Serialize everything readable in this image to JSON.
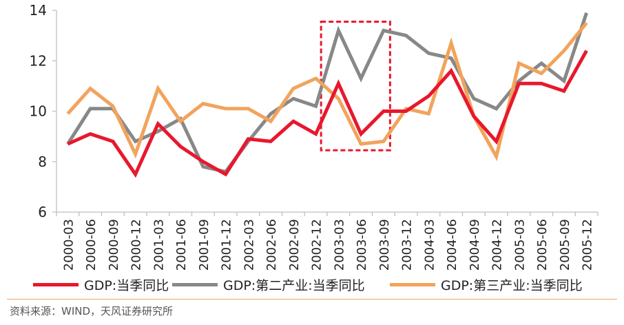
{
  "chart_data": {
    "type": "line",
    "title": "",
    "xlabel": "",
    "ylabel": "",
    "ylim": [
      6,
      14
    ],
    "yticks": [
      6,
      8,
      10,
      12,
      14
    ],
    "grid": false,
    "legend_position": "bottom",
    "categories": [
      "2000-03",
      "2000-06",
      "2000-09",
      "2000-12",
      "2001-03",
      "2001-06",
      "2001-09",
      "2001-12",
      "2002-03",
      "2002-06",
      "2002-09",
      "2002-12",
      "2003-03",
      "2003-06",
      "2003-09",
      "2003-12",
      "2004-03",
      "2004-06",
      "2004-09",
      "2004-12",
      "2005-03",
      "2005-06",
      "2005-09",
      "2005-12"
    ],
    "series": [
      {
        "name": "GDP:当季同比",
        "color": "#e8182d",
        "values": [
          8.7,
          9.1,
          8.8,
          7.5,
          9.5,
          8.6,
          8.0,
          7.5,
          8.9,
          8.8,
          9.6,
          9.1,
          11.1,
          9.1,
          10.0,
          10.0,
          10.6,
          11.6,
          9.8,
          8.8,
          11.1,
          11.1,
          10.8,
          12.4
        ]
      },
      {
        "name": "GDP:第二产业:当季同比",
        "color": "#888888",
        "values": [
          8.7,
          10.1,
          10.1,
          8.8,
          9.2,
          9.7,
          7.8,
          7.6,
          8.8,
          9.9,
          10.5,
          10.2,
          13.2,
          11.3,
          13.2,
          13.0,
          12.3,
          12.1,
          10.5,
          10.1,
          11.2,
          11.9,
          11.2,
          13.9
        ]
      },
      {
        "name": "GDP:第三产业:当季同比",
        "color": "#f2a35c",
        "values": [
          9.9,
          10.9,
          10.2,
          8.3,
          10.9,
          9.6,
          10.3,
          10.1,
          10.1,
          9.6,
          10.9,
          11.3,
          10.5,
          8.7,
          8.8,
          10.1,
          9.9,
          12.7,
          9.8,
          8.2,
          11.9,
          11.5,
          12.4,
          13.5
        ]
      }
    ],
    "highlight": {
      "from": "2003-03",
      "to": "2003-09",
      "color": "#e8182d",
      "style": "dashed"
    }
  },
  "source": {
    "text": "资料来源：WIND，天风证券研究所"
  }
}
